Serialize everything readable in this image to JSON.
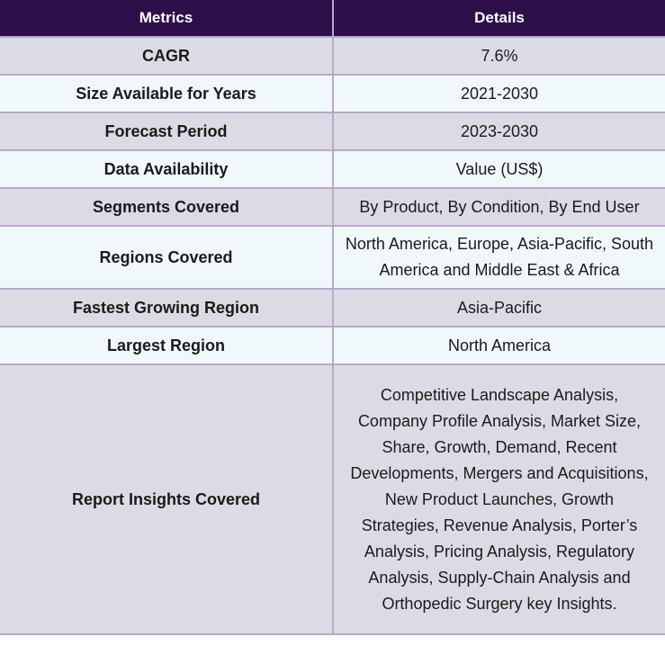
{
  "header": {
    "col_metrics": "Metrics",
    "col_details": "Details"
  },
  "rows": [
    {
      "metric": "CAGR",
      "detail": "7.6%"
    },
    {
      "metric": "Size Available for Years",
      "detail": "2021-2030"
    },
    {
      "metric": "Forecast Period",
      "detail": "2023-2030"
    },
    {
      "metric": "Data Availability",
      "detail": "Value (US$)"
    },
    {
      "metric": "Segments Covered",
      "detail": "By Product, By Condition, By End User"
    },
    {
      "metric": "Regions Covered",
      "detail": "North America, Europe, Asia-Pacific, South America and Middle East & Africa"
    },
    {
      "metric": "Fastest Growing Region",
      "detail": "Asia-Pacific"
    },
    {
      "metric": "Largest Region",
      "detail": "North America"
    },
    {
      "metric": "Report Insights Covered",
      "detail": "Competitive Landscape Analysis, Company Profile Analysis, Market Size, Share, Growth, Demand, Recent Developments, Mergers and Acquisitions, New Product Launches, Growth Strategies, Revenue Analysis, Porter’s Analysis, Pricing Analysis, Regulatory Analysis, Supply-Chain Analysis and Orthopedic Surgery key Insights."
    }
  ],
  "colors": {
    "header_bg": "#2e0f4a",
    "row_odd_bg": "#dcdbe5",
    "row_even_bg": "#f1f8fc",
    "border": "#b9a9c7"
  }
}
